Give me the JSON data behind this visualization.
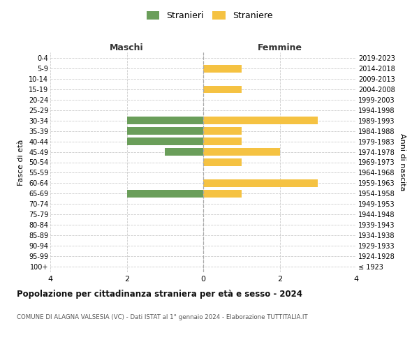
{
  "age_groups": [
    "100+",
    "95-99",
    "90-94",
    "85-89",
    "80-84",
    "75-79",
    "70-74",
    "65-69",
    "60-64",
    "55-59",
    "50-54",
    "45-49",
    "40-44",
    "35-39",
    "30-34",
    "25-29",
    "20-24",
    "15-19",
    "10-14",
    "5-9",
    "0-4"
  ],
  "birth_years": [
    "≤ 1923",
    "1924-1928",
    "1929-1933",
    "1934-1938",
    "1939-1943",
    "1944-1948",
    "1949-1953",
    "1954-1958",
    "1959-1963",
    "1964-1968",
    "1969-1973",
    "1974-1978",
    "1979-1983",
    "1984-1988",
    "1989-1993",
    "1994-1998",
    "1999-2003",
    "2004-2008",
    "2009-2013",
    "2014-2018",
    "2019-2023"
  ],
  "maschi": [
    0,
    0,
    0,
    0,
    0,
    0,
    0,
    2,
    0,
    0,
    0,
    1,
    2,
    2,
    2,
    0,
    0,
    0,
    0,
    0,
    0
  ],
  "femmine": [
    0,
    0,
    0,
    0,
    0,
    0,
    0,
    1,
    3,
    0,
    1,
    2,
    1,
    1,
    3,
    0,
    0,
    1,
    0,
    1,
    0
  ],
  "color_maschi": "#6a9e5a",
  "color_femmine": "#f5c242",
  "background_color": "#ffffff",
  "grid_color": "#cccccc",
  "title": "Popolazione per cittadinanza straniera per età e sesso - 2024",
  "subtitle": "COMUNE DI ALAGNA VALSESIA (VC) - Dati ISTAT al 1° gennaio 2024 - Elaborazione TUTTITALIA.IT",
  "label_maschi": "Maschi",
  "label_femmine": "Femmine",
  "legend_stranieri": "Stranieri",
  "legend_straniere": "Straniere",
  "ylabel_left": "Fasce di età",
  "ylabel_right": "Anni di nascita",
  "xlim": 4,
  "bar_height": 0.72
}
